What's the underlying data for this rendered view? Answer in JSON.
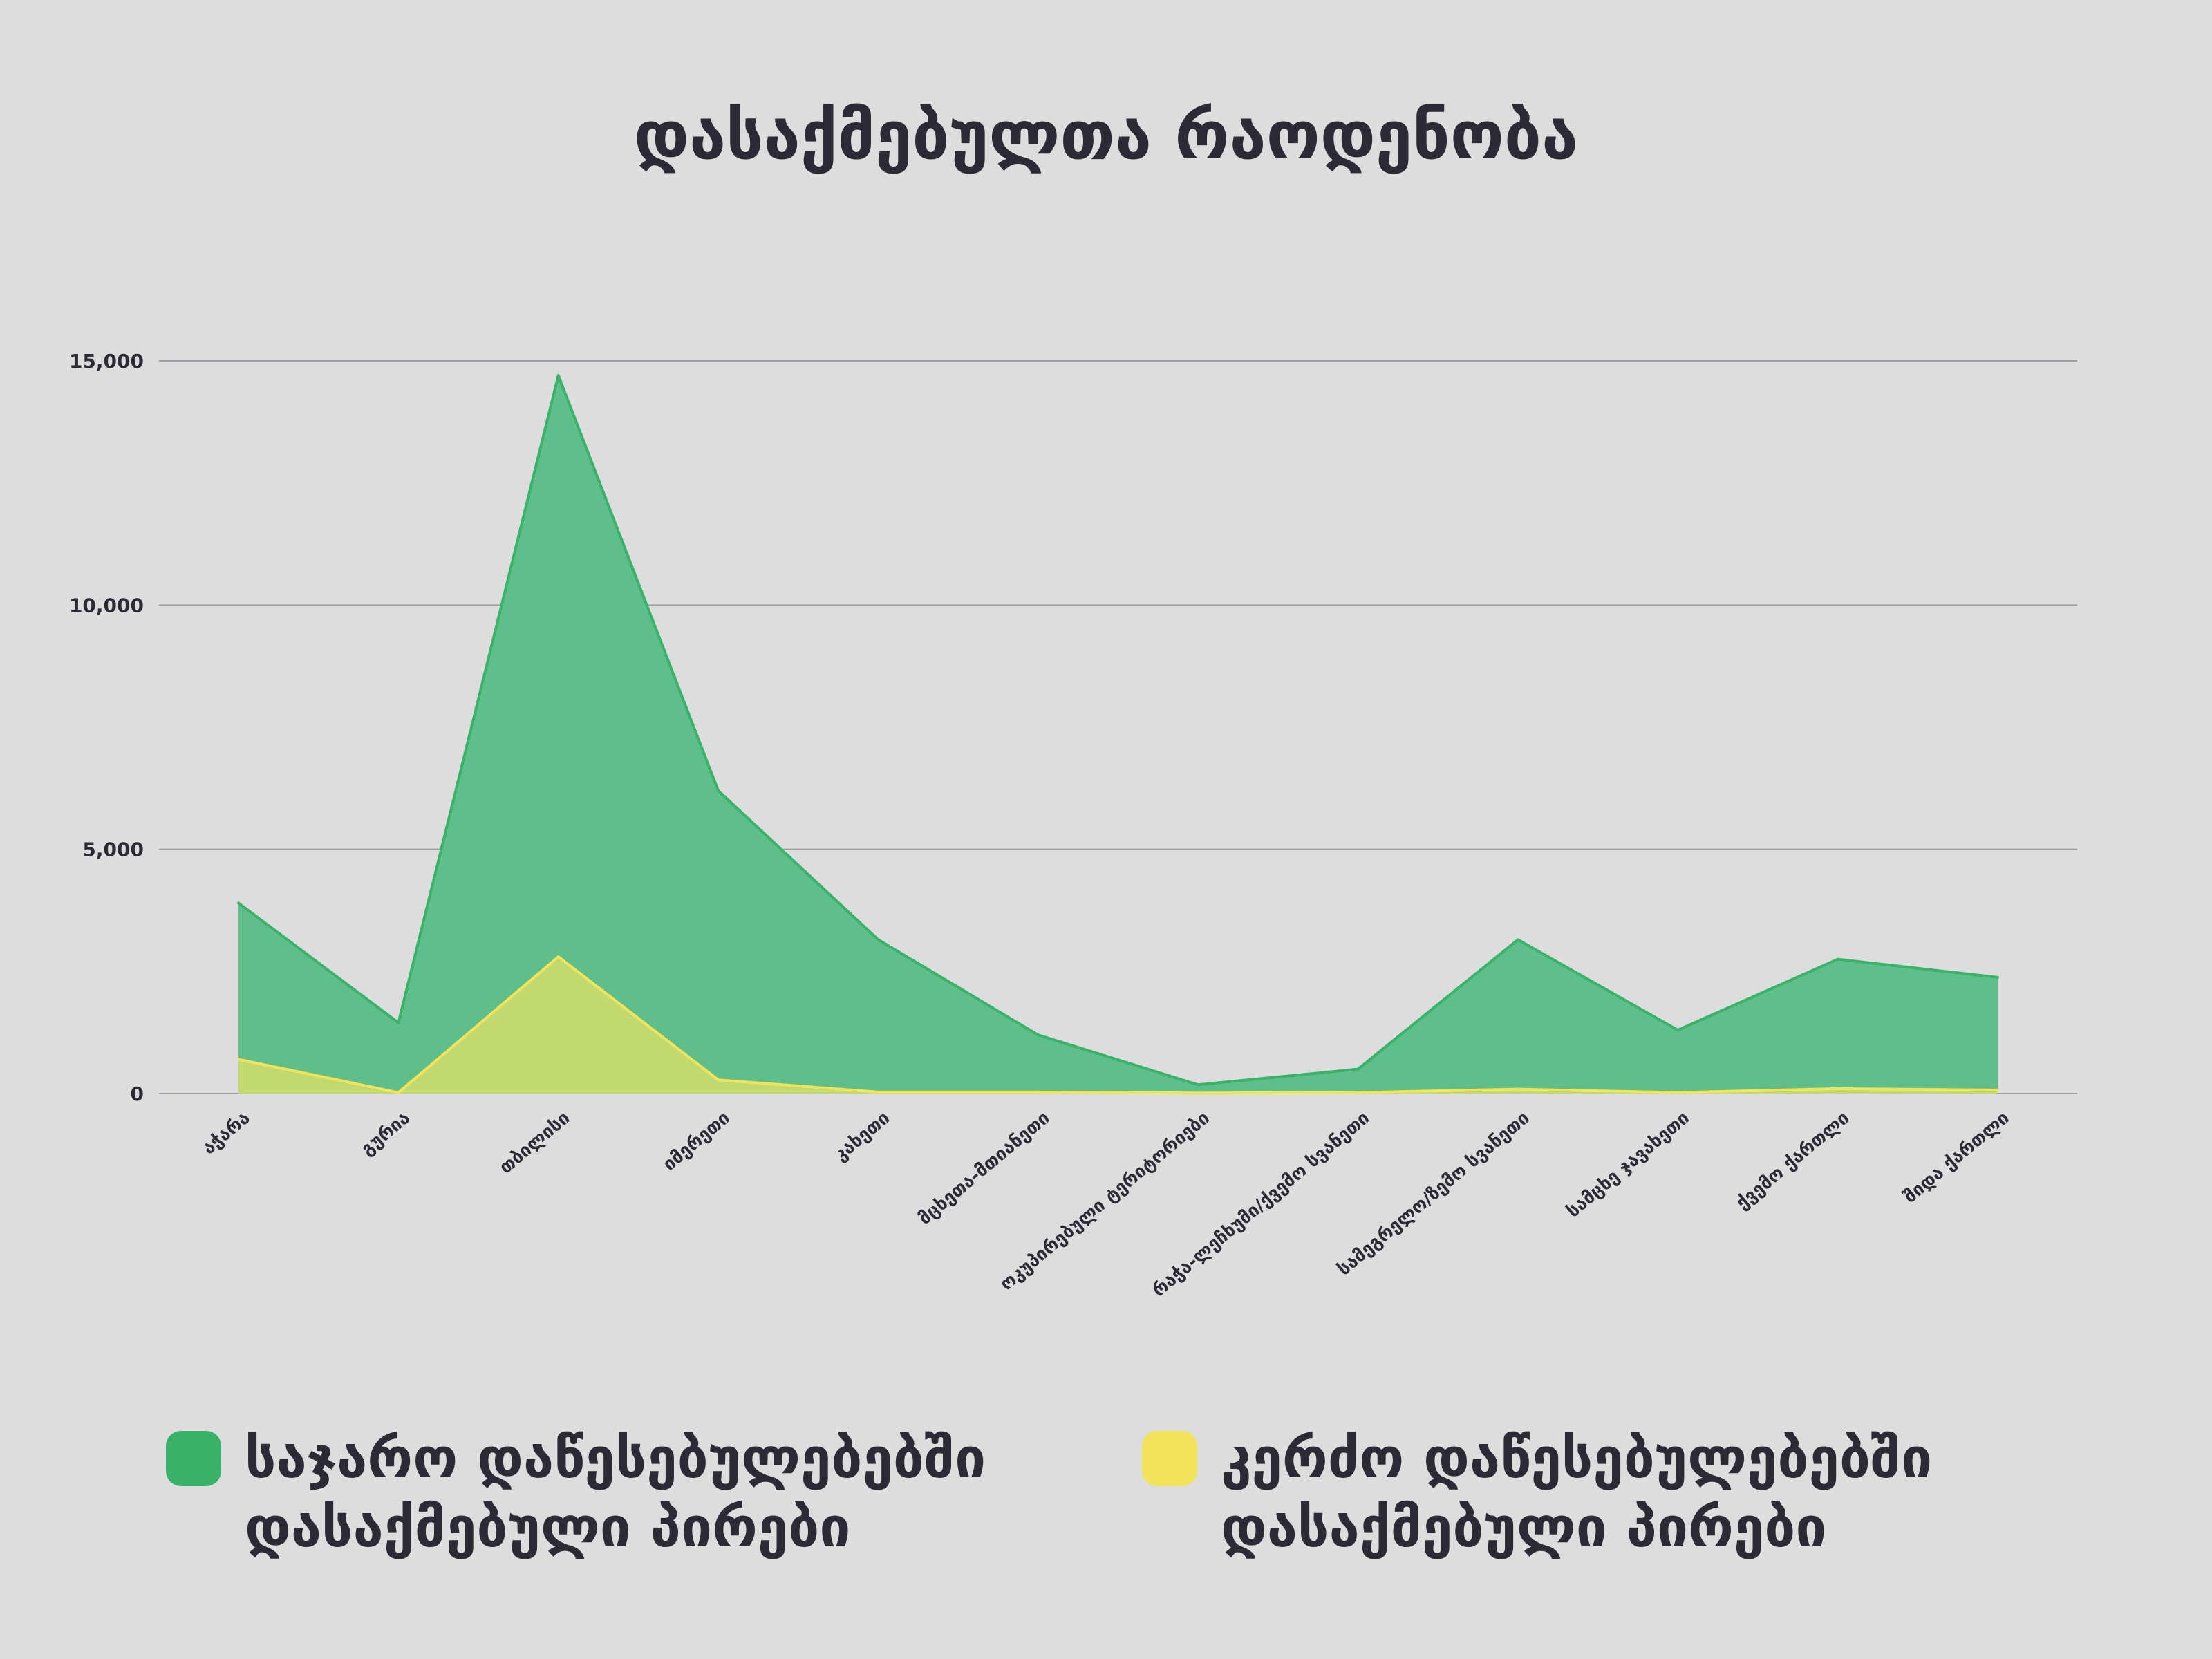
{
  "colors": {
    "background": "#dcdddc",
    "public_fill": "#5fbf8a",
    "public_line": "#3ab26a",
    "private_fill": "#c2d970",
    "private_line": "#f2e35a",
    "grid": "#9c9fa3",
    "text": "#2b2a35"
  },
  "chart_data": {
    "type": "area",
    "title": "დასაქმებულთა რაოდენობა",
    "xlabel": "",
    "ylabel": "",
    "ylim": [
      0,
      15000
    ],
    "yticks": [
      0,
      5000,
      10000,
      15000
    ],
    "ytick_labels": [
      "0",
      "5,000",
      "10,000",
      "15,000"
    ],
    "grid": true,
    "legend_position": "bottom",
    "categories": [
      "აჭარა",
      "გურია",
      "თბილისი",
      "იმერეთი",
      "კახეთი",
      "მცხეთა-მთიანეთი",
      "ოკუპირებული ტერიტორიები",
      "რაჭა-ლეჩხუმი/ქვემო სვანეთი",
      "სამეგრელო/ზემო სვანეთი",
      "სამცხე ჯავახეთი",
      "ქვემო ქართლი",
      "შიდა ქართლი"
    ],
    "series": [
      {
        "name": "საჯარო დაწესებულებებში დასაქმებული პირები",
        "values": [
          3900,
          1450,
          14700,
          6200,
          3150,
          1200,
          180,
          500,
          3150,
          1300,
          2750,
          2380
        ]
      },
      {
        "name": "კერძო დაწესებულებებში დასაქმებული პირები",
        "values": [
          700,
          20,
          2800,
          280,
          30,
          30,
          10,
          20,
          90,
          20,
          100,
          70
        ]
      }
    ]
  }
}
